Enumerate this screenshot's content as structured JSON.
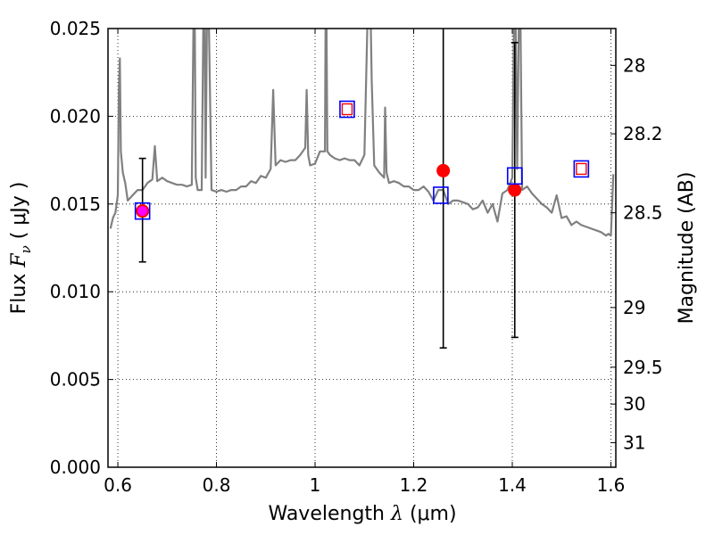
{
  "chart_data": {
    "type": "scatter",
    "title": "",
    "xlabel": "Wavelength",
    "xlabel_symbol": "λ",
    "xlabel_unit": "(μm)",
    "ylabel": "Flux",
    "ylabel_symbol": "F",
    "ylabel_subscript": "ν",
    "ylabel_unit": "( μJy )",
    "y2label": "Magnitude (AB)",
    "xlim": [
      0.58,
      1.61
    ],
    "ylim": [
      0.0,
      0.025
    ],
    "grid": true,
    "x_ticks": [
      0.6,
      0.8,
      1.0,
      1.2,
      1.4,
      1.6
    ],
    "x_tick_labels": [
      "0.6",
      "0.8",
      "1",
      "1.2",
      "1.4",
      "1.6"
    ],
    "y_ticks": [
      0.0,
      0.005,
      0.01,
      0.015,
      0.02,
      0.025
    ],
    "y_tick_labels": [
      "0.000",
      "0.005",
      "0.010",
      "0.015",
      "0.020",
      "0.025"
    ],
    "y2_ticks": [
      {
        "label": "28",
        "flux": 0.0229
      },
      {
        "label": "28.2",
        "flux": 0.019
      },
      {
        "label": "28.5",
        "flux": 0.0145
      },
      {
        "label": "29",
        "flux": 0.0091
      },
      {
        "label": "29.5",
        "flux": 0.0057
      },
      {
        "label": "30",
        "flux": 0.0036
      },
      {
        "label": "31",
        "flux": 0.0014
      }
    ],
    "series": [
      {
        "kind": "line",
        "color": "#808080",
        "x": [
          0.585,
          0.59,
          0.595,
          0.6,
          0.602,
          0.604,
          0.606,
          0.61,
          0.615,
          0.62,
          0.63,
          0.64,
          0.65,
          0.66,
          0.67,
          0.675,
          0.68,
          0.69,
          0.7,
          0.71,
          0.72,
          0.73,
          0.74,
          0.75,
          0.755,
          0.758,
          0.762,
          0.77,
          0.775,
          0.778,
          0.782,
          0.79,
          0.8,
          0.81,
          0.82,
          0.83,
          0.84,
          0.85,
          0.86,
          0.87,
          0.88,
          0.89,
          0.9,
          0.91,
          0.915,
          0.92,
          0.93,
          0.94,
          0.95,
          0.96,
          0.97,
          0.98,
          0.983,
          0.986,
          0.99,
          1.0,
          1.01,
          1.02,
          1.022,
          1.025,
          1.03,
          1.04,
          1.05,
          1.06,
          1.07,
          1.08,
          1.09,
          1.1,
          1.11,
          1.115,
          1.12,
          1.13,
          1.14,
          1.142,
          1.145,
          1.15,
          1.16,
          1.17,
          1.18,
          1.19,
          1.2,
          1.21,
          1.22,
          1.23,
          1.24,
          1.25,
          1.26,
          1.27,
          1.28,
          1.29,
          1.3,
          1.31,
          1.32,
          1.33,
          1.34,
          1.35,
          1.36,
          1.37,
          1.38,
          1.39,
          1.4,
          1.405,
          1.41,
          1.415,
          1.42,
          1.43,
          1.44,
          1.45,
          1.46,
          1.47,
          1.48,
          1.49,
          1.5,
          1.51,
          1.52,
          1.53,
          1.54,
          1.55,
          1.56,
          1.57,
          1.58,
          1.59,
          1.595,
          1.6,
          1.605
        ],
        "y": [
          0.0136,
          0.0142,
          0.0145,
          0.0155,
          0.0215,
          0.0233,
          0.018,
          0.0168,
          0.0162,
          0.0152,
          0.0155,
          0.0158,
          0.0158,
          0.0162,
          0.0164,
          0.0183,
          0.0163,
          0.0165,
          0.0163,
          0.0162,
          0.0161,
          0.0161,
          0.016,
          0.0161,
          0.03,
          0.0165,
          0.0158,
          0.0158,
          0.03,
          0.0165,
          0.03,
          0.0158,
          0.0157,
          0.0158,
          0.0157,
          0.0158,
          0.0158,
          0.016,
          0.016,
          0.0163,
          0.0162,
          0.0166,
          0.0165,
          0.017,
          0.0215,
          0.0172,
          0.0175,
          0.0174,
          0.0175,
          0.0175,
          0.0178,
          0.0182,
          0.0215,
          0.0178,
          0.0172,
          0.0173,
          0.018,
          0.018,
          0.03,
          0.018,
          0.0178,
          0.0176,
          0.0175,
          0.0176,
          0.0175,
          0.0175,
          0.0172,
          0.0178,
          0.03,
          0.022,
          0.0172,
          0.0168,
          0.0165,
          0.0205,
          0.0168,
          0.0162,
          0.0163,
          0.0162,
          0.016,
          0.016,
          0.0158,
          0.0158,
          0.016,
          0.0157,
          0.0152,
          0.0158,
          0.0158,
          0.015,
          0.0152,
          0.0152,
          0.0151,
          0.015,
          0.0147,
          0.0148,
          0.0152,
          0.0145,
          0.015,
          0.014,
          0.0156,
          0.0158,
          0.0165,
          0.03,
          0.017,
          0.03,
          0.0158,
          0.016,
          0.0156,
          0.0153,
          0.015,
          0.0148,
          0.0145,
          0.0155,
          0.0142,
          0.0143,
          0.0138,
          0.014,
          0.0138,
          0.0137,
          0.0136,
          0.0135,
          0.0134,
          0.0132,
          0.0133,
          0.0132,
          0.0167
        ]
      },
      {
        "kind": "errorbar",
        "color": "#000000",
        "points": [
          {
            "x": 0.65,
            "y": 0.0146,
            "ylow": 0.0117,
            "yhigh": 0.0176
          },
          {
            "x": 1.26,
            "y": 0.0169,
            "ylow": 0.0068,
            "yhigh": 0.0255
          },
          {
            "x": 1.405,
            "y": 0.0158,
            "ylow": 0.0074,
            "yhigh": 0.0242
          }
        ]
      },
      {
        "kind": "points",
        "marker": "circle",
        "color": "#ff0000",
        "x": [
          0.65,
          1.26,
          1.405
        ],
        "y": [
          0.0146,
          0.0169,
          0.0158
        ]
      },
      {
        "kind": "points",
        "marker": "square",
        "color": "#0000ff",
        "x": [
          0.65,
          1.065,
          1.255,
          1.405,
          1.54
        ],
        "y": [
          0.0146,
          0.0204,
          0.0155,
          0.0166,
          0.017
        ]
      },
      {
        "kind": "points",
        "marker": "small-square",
        "color": "#ff0000",
        "x": [
          1.065,
          1.54
        ],
        "y": [
          0.0204,
          0.017
        ]
      },
      {
        "kind": "points",
        "marker": "small-circle",
        "color": "#ff00ff",
        "x": [
          0.65
        ],
        "y": [
          0.0146
        ]
      }
    ]
  }
}
